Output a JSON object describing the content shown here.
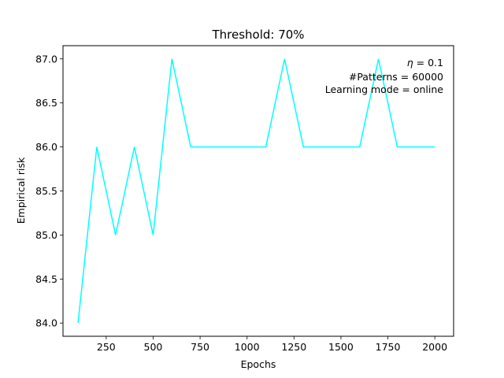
{
  "chart_data": {
    "type": "line",
    "title": "Threshold: 70%",
    "xlabel": "Epochs",
    "ylabel": "Empirical risk",
    "xlim": [
      20,
      2100
    ],
    "ylim": [
      83.85,
      87.15
    ],
    "x_ticks": [
      250,
      500,
      750,
      1000,
      1250,
      1500,
      1750,
      2000
    ],
    "y_ticks": [
      84.0,
      84.5,
      85.0,
      85.5,
      86.0,
      86.5,
      87.0
    ],
    "x_tick_labels": [
      "250",
      "500",
      "750",
      "1000",
      "1250",
      "1500",
      "1750",
      "2000"
    ],
    "y_tick_labels": [
      "84.0",
      "84.5",
      "85.0",
      "85.5",
      "86.0",
      "86.5",
      "87.0"
    ],
    "grid": false,
    "series": [
      {
        "color": "#00ffff",
        "x": [
          100,
          200,
          300,
          400,
          500,
          600,
          700,
          800,
          900,
          1000,
          1100,
          1200,
          1300,
          1400,
          1500,
          1600,
          1700,
          1800,
          1900,
          2000
        ],
        "y": [
          84,
          86,
          85,
          86,
          85,
          87,
          86,
          86,
          86,
          86,
          86,
          87,
          86,
          86,
          86,
          86,
          87,
          86,
          86,
          86
        ]
      }
    ],
    "annotation": {
      "eta_symbol": "η",
      "eta_value": " = 0.1",
      "patterns": "#Patterns = 60000",
      "mode": "Learning mode = online"
    }
  }
}
